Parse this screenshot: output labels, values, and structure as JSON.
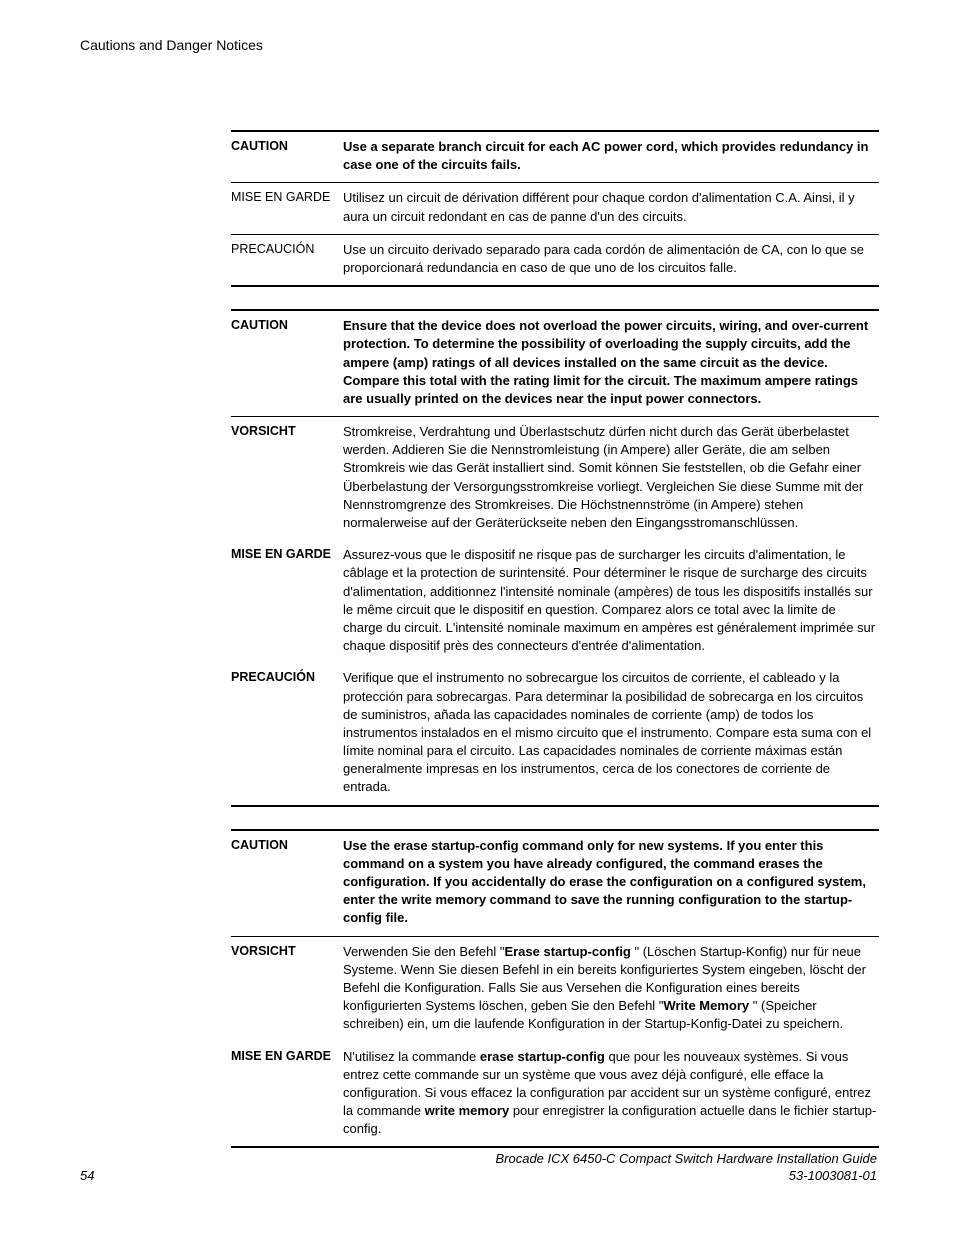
{
  "header": {
    "title": "Cautions and Danger Notices"
  },
  "blocks": [
    {
      "rows": [
        {
          "label": "CAUTION",
          "label_bold": true,
          "text_bold": true,
          "text": "Use a separate branch circuit for each AC power cord, which provides redundancy in case one of the circuits fails.",
          "rule_after": "thin"
        },
        {
          "label": "MISE EN GARDE",
          "label_bold": false,
          "text_bold": false,
          "text": "Utilisez un circuit de dérivation différent pour chaque cordon d'alimentation C.A. Ainsi, il y aura un circuit redondant en cas de panne d'un des circuits.",
          "rule_after": "thin"
        },
        {
          "label": "PRECAUCIÓN",
          "label_bold": false,
          "text_bold": false,
          "text": "Use un circuito derivado separado para cada cordón de alimentación de CA, con lo que se proporcionará redundancia en caso de que uno de los circuitos falle.",
          "rule_after": "thick"
        }
      ]
    },
    {
      "rows": [
        {
          "label": "CAUTION",
          "label_bold": true,
          "text_bold": true,
          "text": "Ensure that the device does not overload the power circuits, wiring, and over-current protection. To determine the possibility of overloading the supply circuits, add the ampere (amp) ratings of all devices installed on the same circuit as the device. Compare this total with the rating limit for the circuit. The maximum ampere ratings are usually printed on the devices near the input power connectors.",
          "rule_after": "thin"
        },
        {
          "label": "VORSICHT",
          "label_bold": true,
          "text_bold": false,
          "text": "Stromkreise, Verdrahtung und Überlastschutz dürfen nicht durch das Gerät überbelastet werden. Addieren Sie die Nennstromleistung (in Ampere) aller Geräte, die am selben Stromkreis wie das Gerät installiert sind. Somit können Sie feststellen, ob die Gefahr einer Überbelastung der Versorgungsstromkreise vorliegt. Vergleichen Sie diese Summe mit der Nennstromgrenze des Stromkreises. Die Höchstnennströme (in Ampere) stehen normalerweise auf der Geräterückseite neben den Eingangsstromanschlüssen.",
          "rule_after": "none"
        },
        {
          "label": "MISE EN GARDE",
          "label_bold": true,
          "text_bold": false,
          "text": "Assurez-vous que le dispositif ne risque pas de surcharger les circuits d'alimentation, le câblage et la protection de surintensité. Pour déterminer le risque de surcharge des circuits d'alimentation, additionnez l'intensité nominale (ampères) de tous les dispositifs installés sur le même circuit que le dispositif en question. Comparez alors ce total avec la limite de charge du circuit. L'intensité nominale maximum en ampères est généralement imprimée sur chaque dispositif près des connecteurs d'entrée d'alimentation.",
          "rule_after": "none"
        },
        {
          "label": "PRECAUCIÓN",
          "label_bold": true,
          "text_bold": false,
          "text": "Verifique que el instrumento no sobrecargue los circuitos de corriente, el cableado y la protección para sobrecargas. Para determinar la posibilidad de sobrecarga en los circuitos de suministros, añada las capacidades nominales de corriente (amp) de todos los instrumentos instalados en el mismo circuito que el instrumento. Compare esta suma con el límite nominal para el circuito. Las capacidades nominales de corriente máximas están generalmente impresas en los instrumentos, cerca de los conectores de corriente de entrada.",
          "rule_after": "thick"
        }
      ]
    },
    {
      "rows": [
        {
          "label": "CAUTION",
          "label_bold": true,
          "special": "caution3",
          "rule_after": "thin"
        },
        {
          "label": "VORSICHT",
          "label_bold": true,
          "special": "vorsicht3",
          "rule_after": "none"
        },
        {
          "label": "MISE EN GARDE",
          "label_bold": true,
          "special": "mise3",
          "rule_after": "thick"
        }
      ]
    }
  ],
  "special": {
    "caution3": {
      "pre1": "Use the ",
      "cmd1": "erase startup-config",
      "mid1": " command only for new systems. If you enter this command on a system you have already configured, the command erases the configuration. If you accidentally do erase the configuration on a configured system, enter the ",
      "cmd2": "write memory",
      "post1": " command to save the running configuration to the startup-config file."
    },
    "vorsicht3": {
      "pre1": "Verwenden Sie den Befehl \"",
      "cmd1": "Erase startup-config ",
      "mid1": "\" (Löschen Startup-Konfig) nur für neue Systeme. Wenn Sie diesen Befehl in ein bereits konfiguriertes System eingeben, löscht der Befehl die Konfiguration. Falls Sie aus Versehen die Konfiguration eines bereits konfigurierten Systems löschen, geben Sie den Befehl \"",
      "cmd2": "Write Memory ",
      "post1": "\" (Speicher schreiben) ein, um die laufende Konfiguration in der Startup-Konfig-Datei zu speichern."
    },
    "mise3": {
      "pre1": "N'utilisez la commande ",
      "cmd1": "erase startup-config",
      "mid1": " que pour les nouveaux systèmes. Si vous entrez cette commande sur un système que vous avez déjà configuré, elle efface la configuration. Si vous effacez la configuration par accident sur un système configuré, entrez la commande ",
      "cmd2": "write memory",
      "post1": " pour enregistrer la configuration actuelle dans le fichier startup-config."
    }
  },
  "footer": {
    "page": "54",
    "guide": "Brocade ICX 6450-C Compact Switch Hardware Installation Guide",
    "docnum": "53-1003081-01"
  }
}
